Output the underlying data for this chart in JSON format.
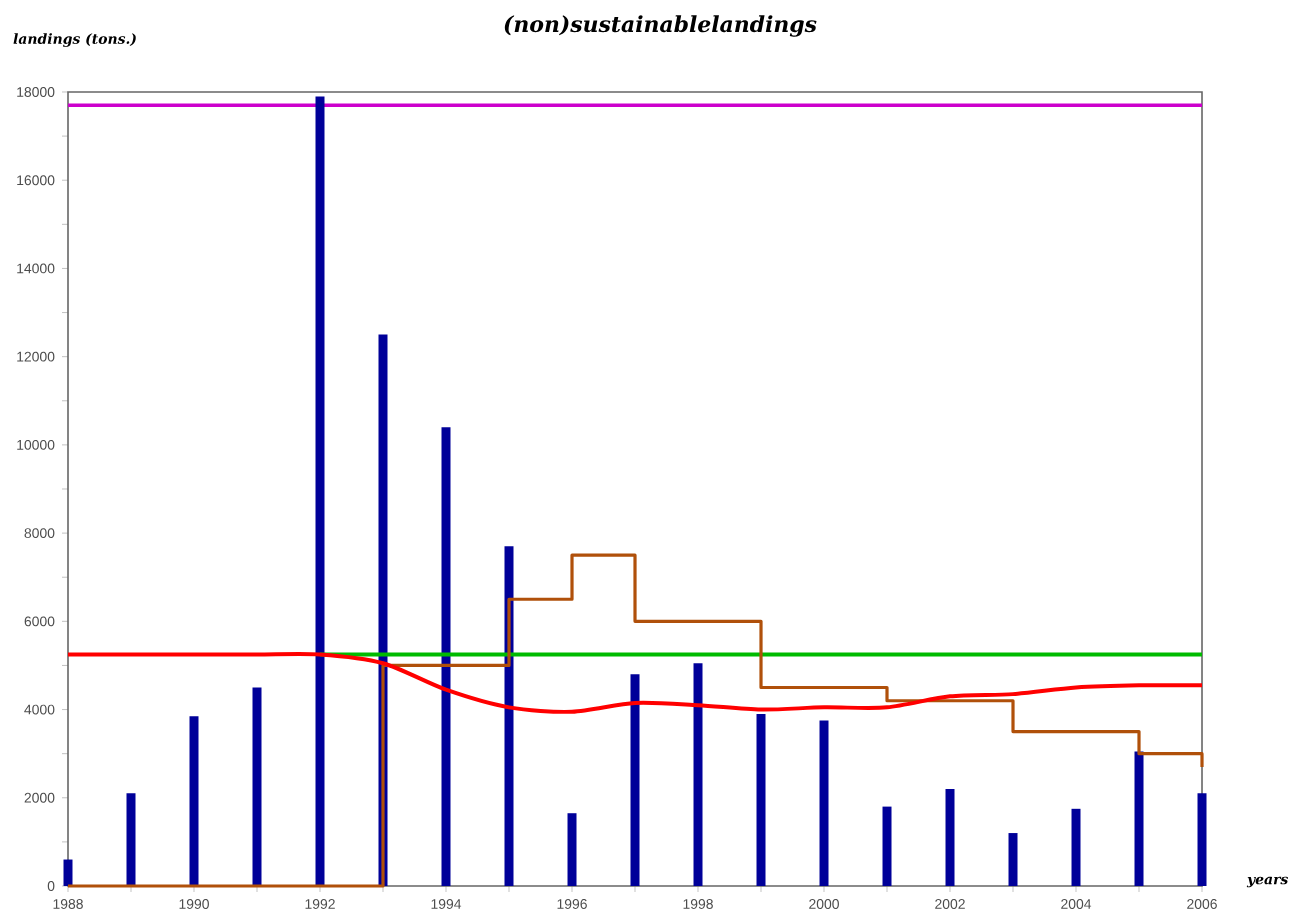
{
  "chart_data": {
    "type": "bar",
    "title": "(non)sustainablelandings",
    "xlabel": "years",
    "ylabel": "landings (tons.)",
    "x": [
      1988,
      1989,
      1990,
      1991,
      1992,
      1993,
      1994,
      1995,
      1996,
      1997,
      1998,
      1999,
      2000,
      2001,
      2002,
      2003,
      2004,
      2005,
      2006
    ],
    "series": [
      {
        "color": "#000099",
        "values": [
          600,
          2100,
          3850,
          4500,
          17900,
          12500,
          10400,
          7700,
          1650,
          4800,
          5050,
          3900,
          3750,
          1800,
          2200,
          1200,
          1750,
          3050,
          2100
        ]
      },
      {
        "type": "line",
        "color": "#00bb00",
        "x": [
          1992,
          2006
        ],
        "values": [
          5250,
          5250
        ]
      },
      {
        "type": "step",
        "color": "#b0500a",
        "values": [
          0,
          0,
          0,
          0,
          0,
          5000,
          5000,
          6500,
          7500,
          6000,
          6000,
          4500,
          4500,
          4200,
          4200,
          3500,
          3500,
          3000,
          2700
        ]
      },
      {
        "type": "line",
        "color": "#ff0000",
        "values": [
          5250,
          5250,
          5250,
          5250,
          5250,
          5050,
          4450,
          4050,
          3950,
          4150,
          4100,
          4000,
          4050,
          4050,
          4300,
          4350,
          4500,
          4550,
          4550
        ]
      }
    ],
    "ref_lines": [
      {
        "axis": "y",
        "value": 17700,
        "color": "#cc00cc"
      }
    ],
    "xlim": [
      1988,
      2006
    ],
    "ylim": [
      0,
      18000
    ],
    "xticks": [
      1988,
      {
        "value": 1989,
        "label": null
      },
      1990,
      {
        "value": 1991,
        "label": null
      },
      1992,
      {
        "value": 1993,
        "label": null
      },
      1994,
      {
        "value": 1995,
        "label": null
      },
      1996,
      {
        "value": 1997,
        "label": null
      },
      1998,
      {
        "value": 1999,
        "label": null
      },
      2000,
      {
        "value": 2001,
        "label": null
      },
      2002,
      {
        "value": 2003,
        "label": null
      },
      2004,
      {
        "value": 2005,
        "label": null
      },
      2006
    ],
    "yticks": [
      0,
      {
        "value": 1000,
        "label": null
      },
      2000,
      {
        "value": 3000,
        "label": null
      },
      4000,
      {
        "value": 5000,
        "label": null
      },
      6000,
      {
        "value": 7000,
        "label": null
      },
      8000,
      {
        "value": 9000,
        "label": null
      },
      10000,
      {
        "value": 11000,
        "label": null
      },
      12000,
      {
        "value": 13000,
        "label": null
      },
      14000,
      {
        "value": 15000,
        "label": null
      },
      16000,
      {
        "value": 17000,
        "label": null
      },
      18000
    ]
  }
}
